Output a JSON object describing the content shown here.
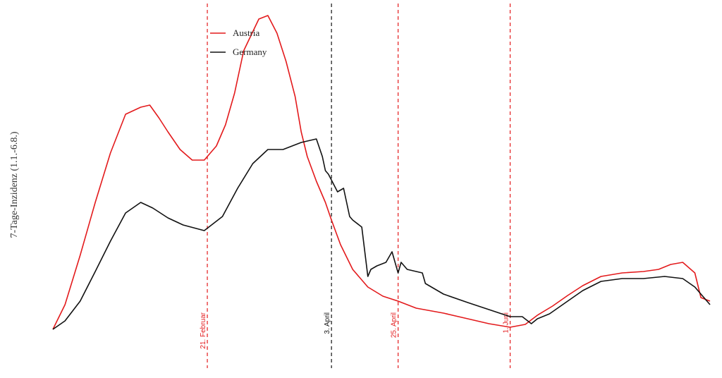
{
  "chart_data": {
    "type": "line",
    "ylabel": "7-Tage-Inzidenz (1.1.-6.8.)",
    "x_domain": [
      "2021-01-01",
      "2021-08-06"
    ],
    "y_range": [
      0,
      440
    ],
    "legend": "top-left",
    "grid": false,
    "series": [
      {
        "name": "Austria",
        "color": "#e31a1c",
        "x": [
          "2021-01-01",
          "2021-01-05",
          "2021-01-10",
          "2021-01-15",
          "2021-01-20",
          "2021-01-25",
          "2021-01-30",
          "2021-02-02",
          "2021-02-05",
          "2021-02-08",
          "2021-02-12",
          "2021-02-16",
          "2021-02-20",
          "2021-02-24",
          "2021-02-27",
          "2021-03-02",
          "2021-03-05",
          "2021-03-10",
          "2021-03-13",
          "2021-03-16",
          "2021-03-19",
          "2021-03-22",
          "2021-03-24",
          "2021-03-26",
          "2021-03-29",
          "2021-04-01",
          "2021-04-03",
          "2021-04-06",
          "2021-04-10",
          "2021-04-15",
          "2021-04-20",
          "2021-04-25",
          "2021-05-01",
          "2021-05-10",
          "2021-05-18",
          "2021-05-25",
          "2021-06-01",
          "2021-06-06",
          "2021-06-10",
          "2021-06-15",
          "2021-06-20",
          "2021-06-25",
          "2021-07-01",
          "2021-07-08",
          "2021-07-15",
          "2021-07-20",
          "2021-07-24",
          "2021-07-28",
          "2021-08-01",
          "2021-08-03",
          "2021-08-06"
        ],
        "values": [
          0,
          35,
          105,
          180,
          250,
          305,
          315,
          318,
          300,
          280,
          255,
          240,
          240,
          260,
          290,
          335,
          395,
          440,
          445,
          420,
          380,
          330,
          280,
          245,
          210,
          180,
          155,
          120,
          85,
          60,
          47,
          40,
          30,
          23,
          15,
          8,
          3,
          7,
          20,
          33,
          48,
          62,
          75,
          80,
          82,
          85,
          92,
          95,
          80,
          45,
          40
        ]
      },
      {
        "name": "Germany",
        "color": "#111111",
        "x": [
          "2021-01-01",
          "2021-01-05",
          "2021-01-10",
          "2021-01-15",
          "2021-01-20",
          "2021-01-25",
          "2021-01-30",
          "2021-02-03",
          "2021-02-08",
          "2021-02-13",
          "2021-02-20",
          "2021-02-26",
          "2021-03-03",
          "2021-03-08",
          "2021-03-13",
          "2021-03-18",
          "2021-03-24",
          "2021-03-29",
          "2021-03-31",
          "2021-04-01",
          "2021-04-02",
          "2021-04-05",
          "2021-04-07",
          "2021-04-09",
          "2021-04-10",
          "2021-04-13",
          "2021-04-15",
          "2021-04-16",
          "2021-04-18",
          "2021-04-21",
          "2021-04-23",
          "2021-04-25",
          "2021-04-26",
          "2021-04-28",
          "2021-05-03",
          "2021-05-04",
          "2021-05-10",
          "2021-05-18",
          "2021-05-25",
          "2021-06-01",
          "2021-06-05",
          "2021-06-08",
          "2021-06-10",
          "2021-06-14",
          "2021-06-20",
          "2021-06-25",
          "2021-07-01",
          "2021-07-08",
          "2021-07-15",
          "2021-07-22",
          "2021-07-28",
          "2021-08-01",
          "2021-08-06"
        ],
        "values": [
          0,
          12,
          40,
          82,
          125,
          165,
          180,
          172,
          158,
          148,
          140,
          160,
          200,
          235,
          255,
          255,
          265,
          270,
          245,
          225,
          220,
          195,
          200,
          160,
          155,
          145,
          75,
          85,
          90,
          95,
          110,
          80,
          95,
          85,
          80,
          65,
          50,
          38,
          28,
          18,
          18,
          8,
          15,
          22,
          40,
          55,
          68,
          72,
          72,
          75,
          72,
          60,
          35
        ]
      }
    ],
    "annotations": [
      {
        "label": "21. Februar",
        "date": "2021-02-21",
        "color": "#e31a1c"
      },
      {
        "label": "3. April",
        "date": "2021-04-03",
        "color": "#111111"
      },
      {
        "label": "25. April",
        "date": "2021-04-25",
        "color": "#e31a1c"
      },
      {
        "label": "1. Juni",
        "date": "2021-06-01",
        "color": "#e31a1c"
      }
    ]
  }
}
